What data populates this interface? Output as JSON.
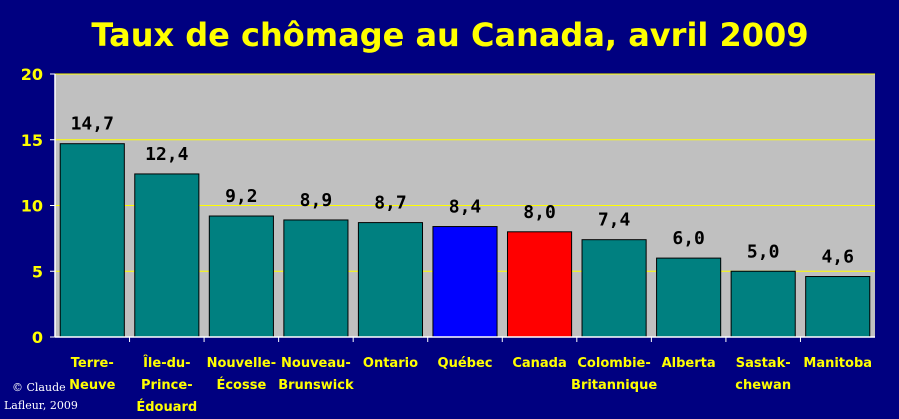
{
  "chart_data": {
    "type": "bar",
    "title": "Taux de chômage au Canada, avril 2009",
    "categories": [
      [
        "Terre-",
        "Neuve"
      ],
      [
        "Île-du-",
        "Prince-",
        "Édouard"
      ],
      [
        "Nouvelle-",
        "Écosse"
      ],
      [
        "Nouveau-",
        "Brunswick"
      ],
      [
        "Ontario"
      ],
      [
        "Québec"
      ],
      [
        "Canada"
      ],
      [
        "Colombie-",
        "Britannique"
      ],
      [
        "Alberta"
      ],
      [
        "Sastak-",
        "chewan"
      ],
      [
        "Manitoba"
      ]
    ],
    "values": [
      14.7,
      12.4,
      9.2,
      8.9,
      8.7,
      8.4,
      8.0,
      7.4,
      6.0,
      5.0,
      4.6
    ],
    "value_labels": [
      "14,7",
      "12,4",
      "9,2",
      "8,9",
      "8,7",
      "8,4",
      "8,0",
      "7,4",
      "6,0",
      "5,0",
      "4,6"
    ],
    "bar_colors": [
      "#008080",
      "#008080",
      "#008080",
      "#008080",
      "#008080",
      "#0000FF",
      "#FF0000",
      "#008080",
      "#008080",
      "#008080",
      "#008080"
    ],
    "ylim": [
      0,
      20
    ],
    "yticks": [
      "0",
      "5",
      "10",
      "15",
      "20"
    ],
    "grid": true,
    "xlabel": "",
    "ylabel": ""
  },
  "credit": [
    "© Claude",
    "Lafleur, 2009"
  ],
  "colors": {
    "background": "#000080",
    "plot_area": "#C0C0C0",
    "text": "#FFFF00",
    "gridline": "#FFFF00",
    "axis": "#FFFFFF"
  }
}
